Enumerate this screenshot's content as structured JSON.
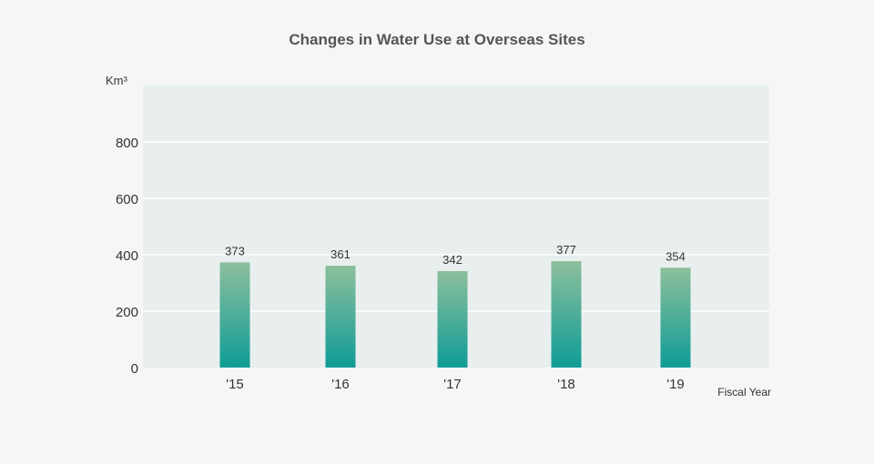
{
  "chart_data": {
    "type": "bar",
    "title": "Changes in Water Use at Overseas Sites",
    "ylabel": "Km³",
    "xlabel": "Fiscal Year",
    "categories": [
      "'15",
      "'16",
      "'17",
      "'18",
      "'19"
    ],
    "values": [
      373,
      361,
      342,
      377,
      354
    ],
    "ylim": [
      0,
      1000
    ],
    "yticks": [
      0,
      200,
      400,
      600,
      800
    ],
    "grid": true,
    "colors": {
      "bar_top": "#8cbf9c",
      "bar_bottom": "#0f9c96",
      "plot_bg": "#e8efee",
      "grid": "#ffffff"
    }
  }
}
